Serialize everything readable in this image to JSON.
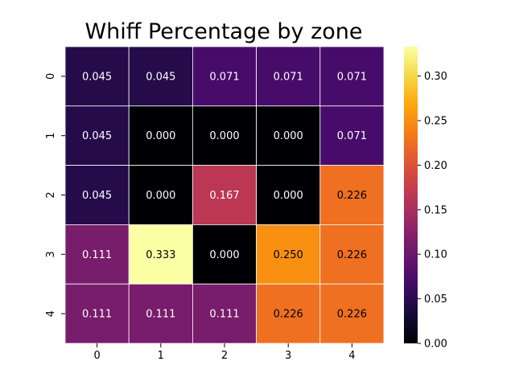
{
  "chart_data": {
    "type": "heatmap",
    "title": "Whiff Percentage by zone",
    "xlabel": "",
    "ylabel": "",
    "x_categories": [
      "0",
      "1",
      "2",
      "3",
      "4"
    ],
    "y_categories": [
      "0",
      "1",
      "2",
      "3",
      "4"
    ],
    "values": [
      [
        0.045,
        0.045,
        0.071,
        0.071,
        0.071
      ],
      [
        0.045,
        0.0,
        0.0,
        0.0,
        0.071
      ],
      [
        0.045,
        0.0,
        0.167,
        0.0,
        0.226
      ],
      [
        0.111,
        0.333,
        0.0,
        0.25,
        0.226
      ],
      [
        0.111,
        0.111,
        0.111,
        0.226,
        0.226
      ]
    ],
    "cell_labels": [
      [
        "0.045",
        "0.045",
        "0.071",
        "0.071",
        "0.071"
      ],
      [
        "0.045",
        "0.000",
        "0.000",
        "0.000",
        "0.071"
      ],
      [
        "0.045",
        "0.000",
        "0.167",
        "0.000",
        "0.226"
      ],
      [
        "0.111",
        "0.333",
        "0.000",
        "0.250",
        "0.226"
      ],
      [
        "0.111",
        "0.111",
        "0.111",
        "0.226",
        "0.226"
      ]
    ],
    "colormap": "inferno",
    "vmin": 0.0,
    "vmax": 0.333,
    "colorbar_ticks": [
      "0.00",
      "0.05",
      "0.10",
      "0.15",
      "0.20",
      "0.25",
      "0.30"
    ],
    "colorbar_tick_values": [
      0.0,
      0.05,
      0.1,
      0.15,
      0.2,
      0.25,
      0.3
    ],
    "grid": false,
    "legend": "colorbar-right"
  },
  "colors": {
    "cell_border": "#ffffff",
    "text_light": "#ffffff",
    "text_dark": "#000000",
    "axis": "#000000"
  }
}
